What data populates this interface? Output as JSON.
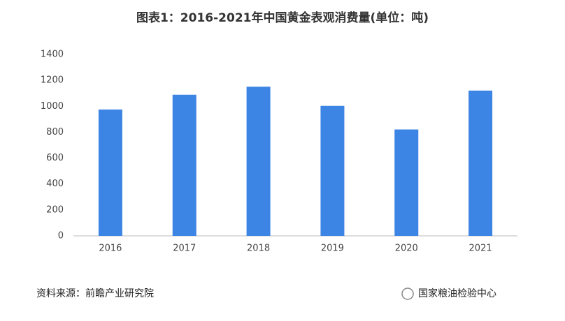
{
  "chart_data": {
    "type": "bar",
    "title": "图表1：2016-2021年中国黄金表观消费量(单位：吨)",
    "categories": [
      "2016",
      "2017",
      "2018",
      "2019",
      "2020",
      "2021"
    ],
    "values": [
      975,
      1089,
      1151,
      1003,
      821,
      1121
    ],
    "color": "#3d85e4",
    "ylim": [
      0,
      1400
    ],
    "yticks": [
      0,
      200,
      400,
      600,
      800,
      1000,
      1200,
      1400
    ],
    "grid": false
  },
  "footer": {
    "source": "资料来源：前瞻产业研究院",
    "account": "国家粮油检验中心"
  }
}
